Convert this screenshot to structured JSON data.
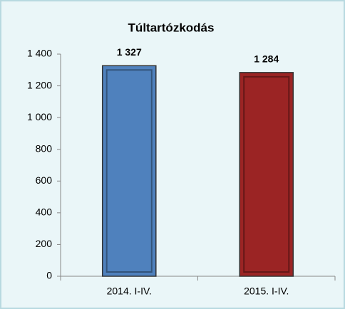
{
  "chart_data": {
    "type": "bar",
    "title": "Túltartózkodás",
    "categories": [
      "2014. I-IV.",
      "2015. I-IV."
    ],
    "values": [
      1327,
      1284
    ],
    "value_labels": [
      "1 327",
      "1 284"
    ],
    "colors": [
      "#4f81bd",
      "#9b2424"
    ],
    "ylim": [
      0,
      1400
    ],
    "yticks": [
      0,
      200,
      400,
      600,
      800,
      {
        "value": 1000,
        "label": "1 000"
      },
      {
        "value": 1200,
        "label": "1 200"
      },
      {
        "value": 1400,
        "label": "1 400"
      }
    ],
    "grid": false
  }
}
